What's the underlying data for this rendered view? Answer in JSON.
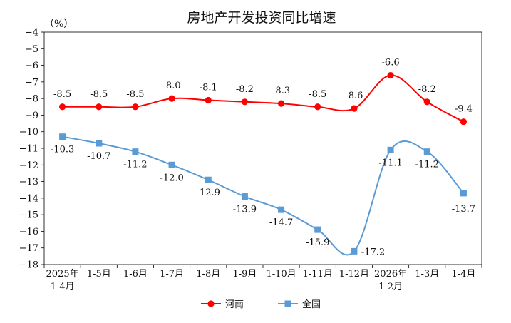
{
  "chart_data": {
    "type": "line",
    "title": "房地产开发投资同比增速",
    "unit": "（%）",
    "categories": [
      [
        "2025年",
        "1-4月"
      ],
      [
        "1-5月"
      ],
      [
        "1-6月"
      ],
      [
        "1-7月"
      ],
      [
        "1-8月"
      ],
      [
        "1-9月"
      ],
      [
        "1-10月"
      ],
      [
        "1-11月"
      ],
      [
        "1-12月"
      ],
      [
        "2026年",
        "1-2月"
      ],
      [
        "1-3月"
      ],
      [
        "1-4月"
      ]
    ],
    "ylim": [
      -18,
      -4
    ],
    "yticks": [
      -4,
      -5,
      -6,
      -7,
      -8,
      -9,
      -10,
      -11,
      -12,
      -13,
      -14,
      -15,
      -16,
      -17,
      -18
    ],
    "series": [
      {
        "name": "河南",
        "color": "#ff0000",
        "marker": "circle",
        "values": [
          -8.5,
          -8.5,
          -8.5,
          -8.0,
          -8.1,
          -8.2,
          -8.3,
          -8.5,
          -8.6,
          -6.6,
          -8.2,
          -9.4
        ],
        "labels": [
          "-8.5",
          "-8.5",
          "-8.5",
          "-8.0",
          "-8.1",
          "-8.2",
          "-8.3",
          "-8.5",
          "-8.6",
          "-6.6",
          "-8.2",
          "-9.4"
        ]
      },
      {
        "name": "全国",
        "color": "#5b9bd5",
        "marker": "square",
        "values": [
          -10.3,
          -10.7,
          -11.2,
          -12.0,
          -12.9,
          -13.9,
          -14.7,
          -15.9,
          -17.2,
          -11.1,
          -11.2,
          -13.7
        ],
        "labels": [
          "-10.3",
          "-10.7",
          "-11.2",
          "-12.0",
          "-12.9",
          "-13.9",
          "-14.7",
          "-15.9",
          "-17.2",
          "-11.1",
          "-11.2",
          "-13.7"
        ]
      }
    ],
    "legend_position": "bottom",
    "grid": false
  }
}
